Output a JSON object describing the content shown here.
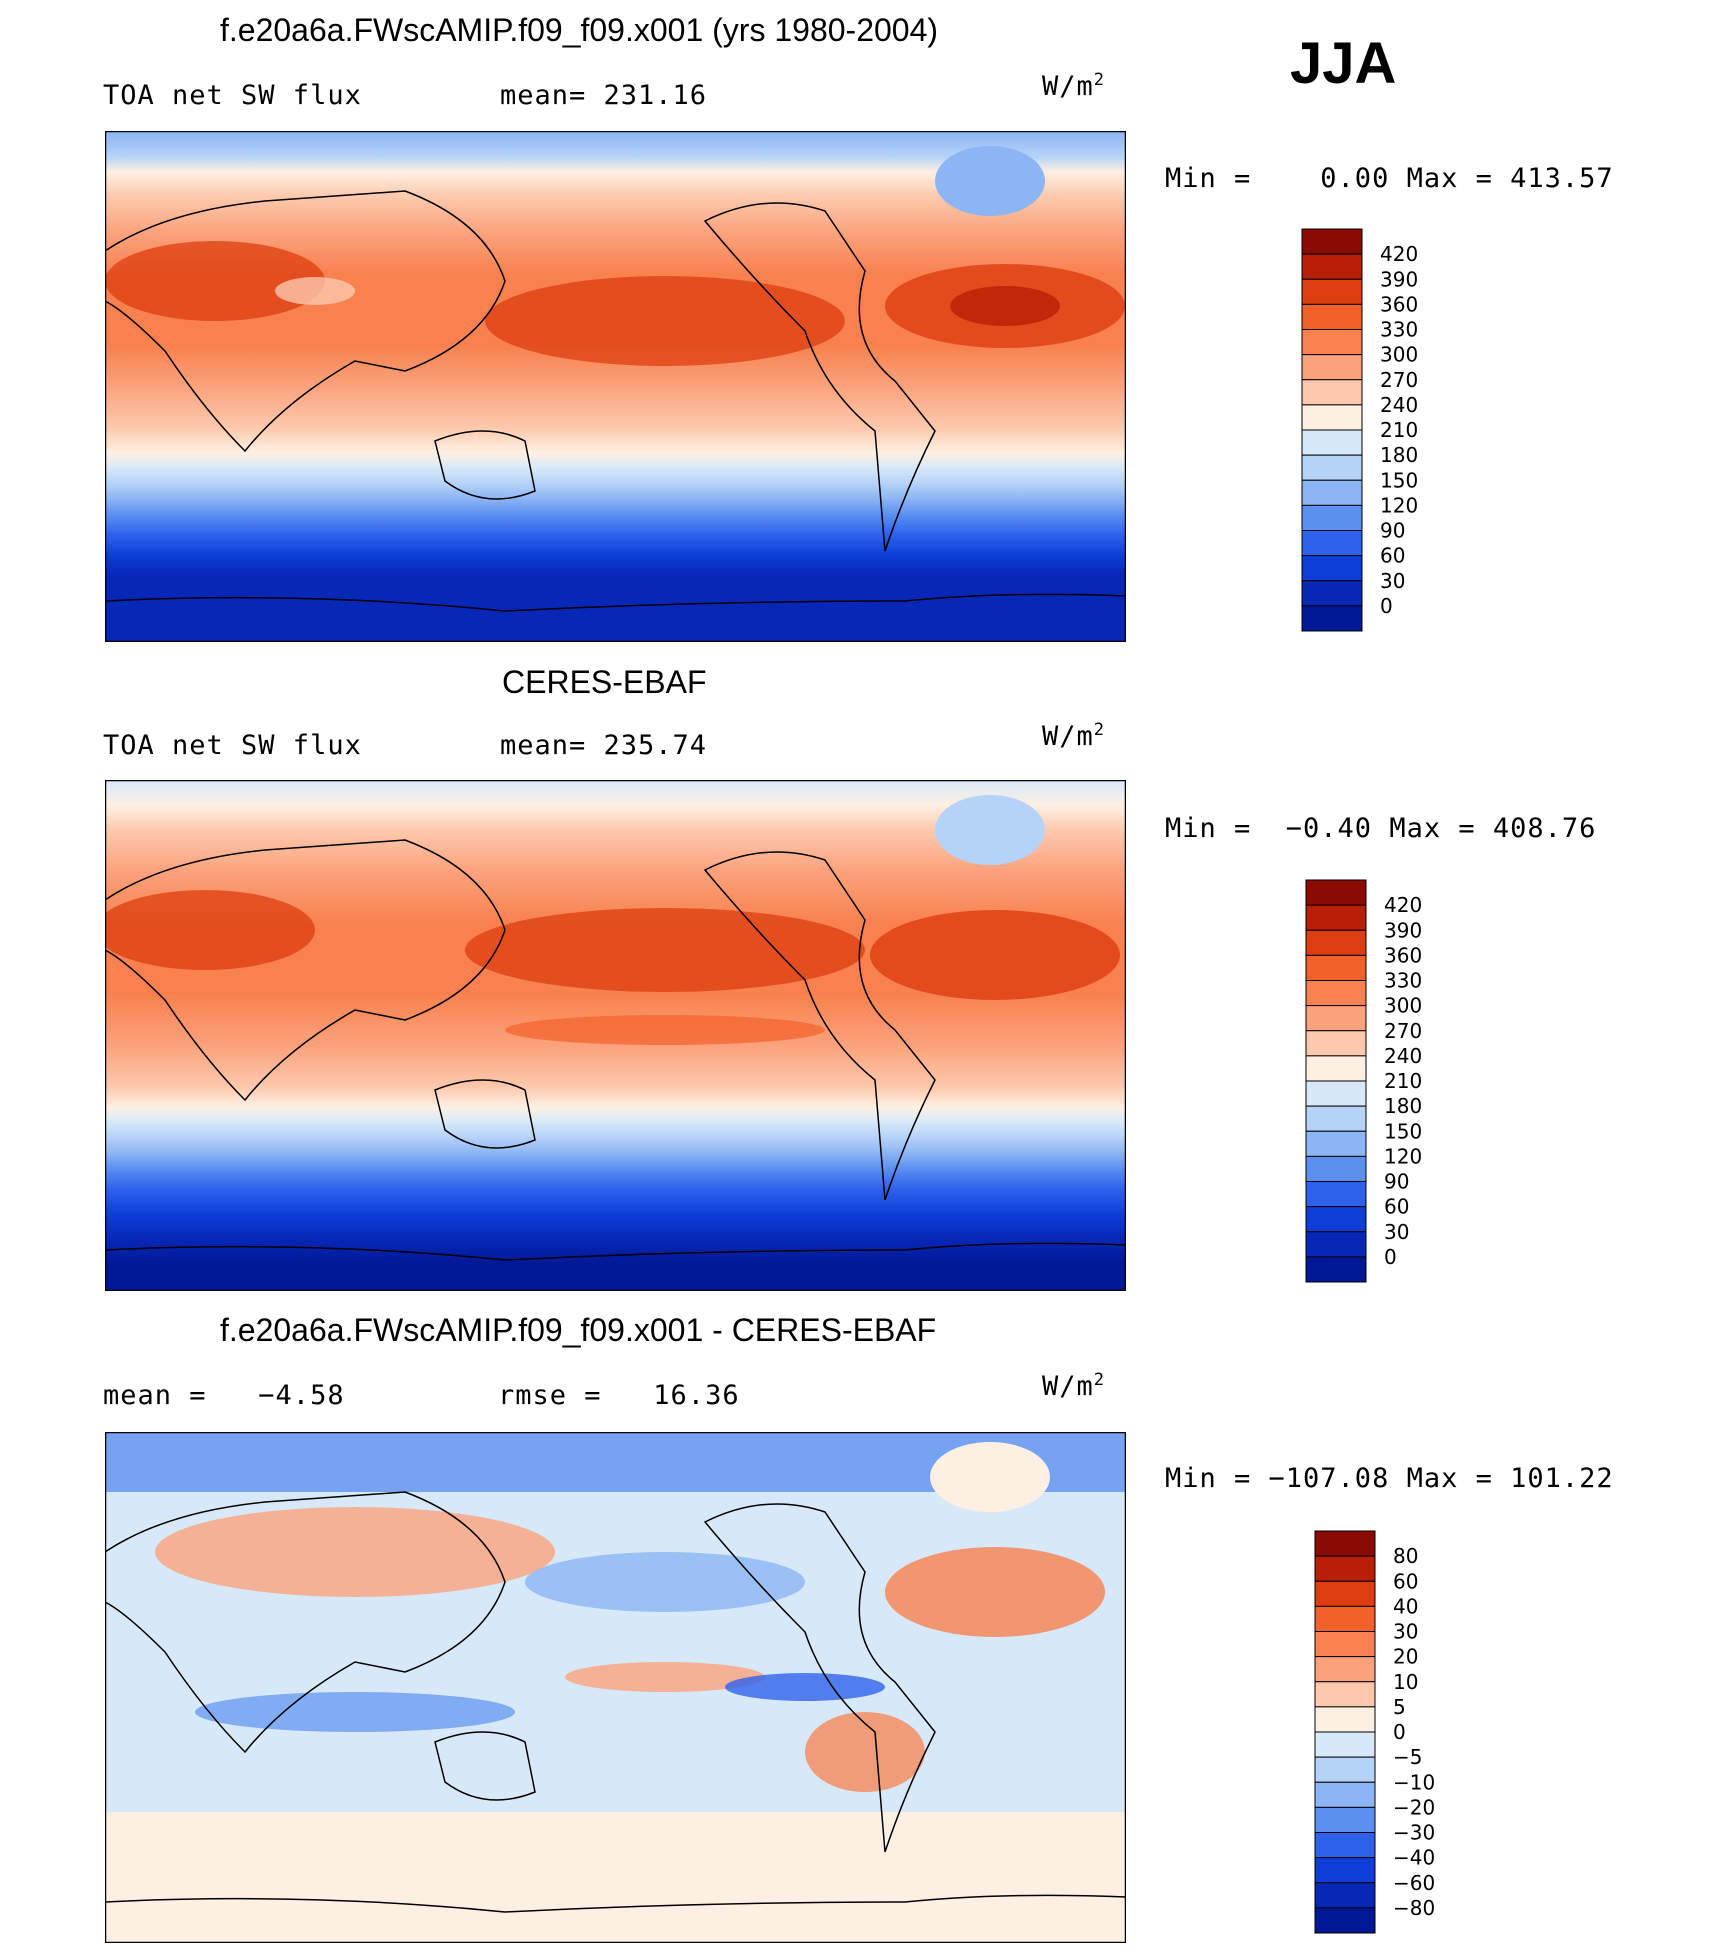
{
  "season": "JJA",
  "units": "W/m²",
  "chart_data": [
    {
      "type": "heatmap",
      "title": "f.e20a6a.FWscAMIP.f09_f09.x001 (yrs 1980-2004)",
      "left_label": "TOA net SW flux",
      "stat_text": "mean= 231.16",
      "units": "W/m²",
      "minmax_text": "Min =    0.00 Max = 413.57",
      "min": 0.0,
      "max": 413.57,
      "levels": [
        "420",
        "390",
        "360",
        "330",
        "300",
        "270",
        "240",
        "210",
        "180",
        "150",
        "120",
        "90",
        "60",
        "30",
        "0"
      ],
      "colors": [
        "#8b0b04",
        "#b81f06",
        "#dd3d0f",
        "#f2612a",
        "#f8814f",
        "#fba27c",
        "#fdc8ac",
        "#fdf0e2",
        "#d7e9f9",
        "#b5d2f8",
        "#8cb5f5",
        "#5c90f0",
        "#2f62ec",
        "#0d3ed8",
        "#0727b6",
        "#001896"
      ]
    },
    {
      "type": "heatmap",
      "title": "CERES-EBAF",
      "left_label": "TOA net SW flux",
      "stat_text": "mean= 235.74",
      "units": "W/m²",
      "minmax_text": "Min =  −0.40 Max = 408.76",
      "min": -0.4,
      "max": 408.76,
      "levels": [
        "420",
        "390",
        "360",
        "330",
        "300",
        "270",
        "240",
        "210",
        "180",
        "150",
        "120",
        "90",
        "60",
        "30",
        "0"
      ],
      "colors": [
        "#8b0b04",
        "#b81f06",
        "#dd3d0f",
        "#f2612a",
        "#f8814f",
        "#fba27c",
        "#fdc8ac",
        "#fdf0e2",
        "#d7e9f9",
        "#b5d2f8",
        "#8cb5f5",
        "#5c90f0",
        "#2f62ec",
        "#0d3ed8",
        "#0727b6",
        "#001896"
      ]
    },
    {
      "type": "heatmap",
      "title": "f.e20a6a.FWscAMIP.f09_f09.x001 - CERES-EBAF",
      "left_label": "mean =   −4.58",
      "stat_text": "rmse =   16.36",
      "units": "W/m²",
      "minmax_text": "Min = −107.08 Max = 101.22",
      "min": -107.08,
      "max": 101.22,
      "levels": [
        "80",
        "60",
        "40",
        "30",
        "20",
        "10",
        "5",
        "0",
        "−5",
        "−10",
        "−20",
        "−30",
        "−40",
        "−60",
        "−80"
      ],
      "colors": [
        "#8b0b04",
        "#b81f06",
        "#dd3d0f",
        "#f2612a",
        "#f8814f",
        "#fba27c",
        "#fdc8ac",
        "#fdf0e2",
        "#d7e9f9",
        "#b5d2f8",
        "#8cb5f5",
        "#5c90f0",
        "#2f62ec",
        "#0d3ed8",
        "#0727b6",
        "#001896"
      ]
    }
  ]
}
